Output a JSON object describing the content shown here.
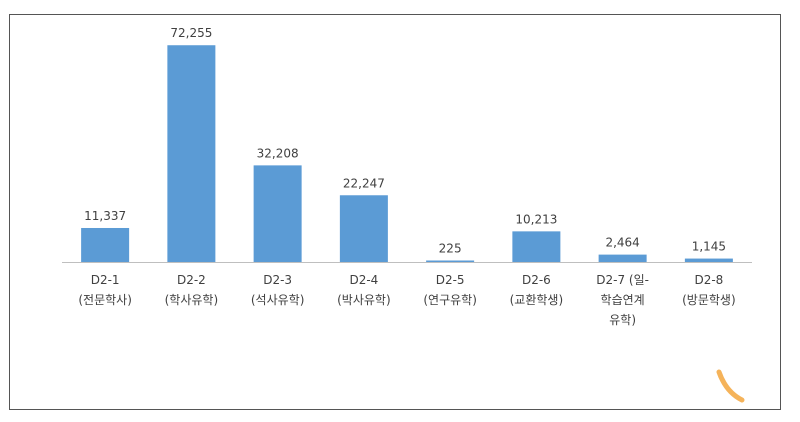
{
  "chart_data": {
    "type": "bar",
    "title": "",
    "xlabel": "",
    "ylabel": "",
    "grid": false,
    "legend": "none",
    "bar_color": "#5b9bd5",
    "ylim": [
      0,
      80000
    ],
    "categories": [
      [
        "D2-1",
        "(전문학사)"
      ],
      [
        "D2-2",
        "(학사유학)"
      ],
      [
        "D2-3",
        "(석사유학)"
      ],
      [
        "D2-4",
        "(박사유학)"
      ],
      [
        "D2-5",
        "(연구유학)"
      ],
      [
        "D2-6",
        "(교환학생)"
      ],
      [
        "D2-7 (일-",
        "학습연계",
        "유학)"
      ],
      [
        "D2-8",
        "(방문학생)"
      ]
    ],
    "values": [
      11337,
      72255,
      32208,
      22247,
      225,
      10213,
      2464,
      1145
    ],
    "data_labels": [
      "11,337",
      "72,255",
      "32,208",
      "22,247",
      "225",
      "10,213",
      "2,464",
      "1,145"
    ]
  }
}
